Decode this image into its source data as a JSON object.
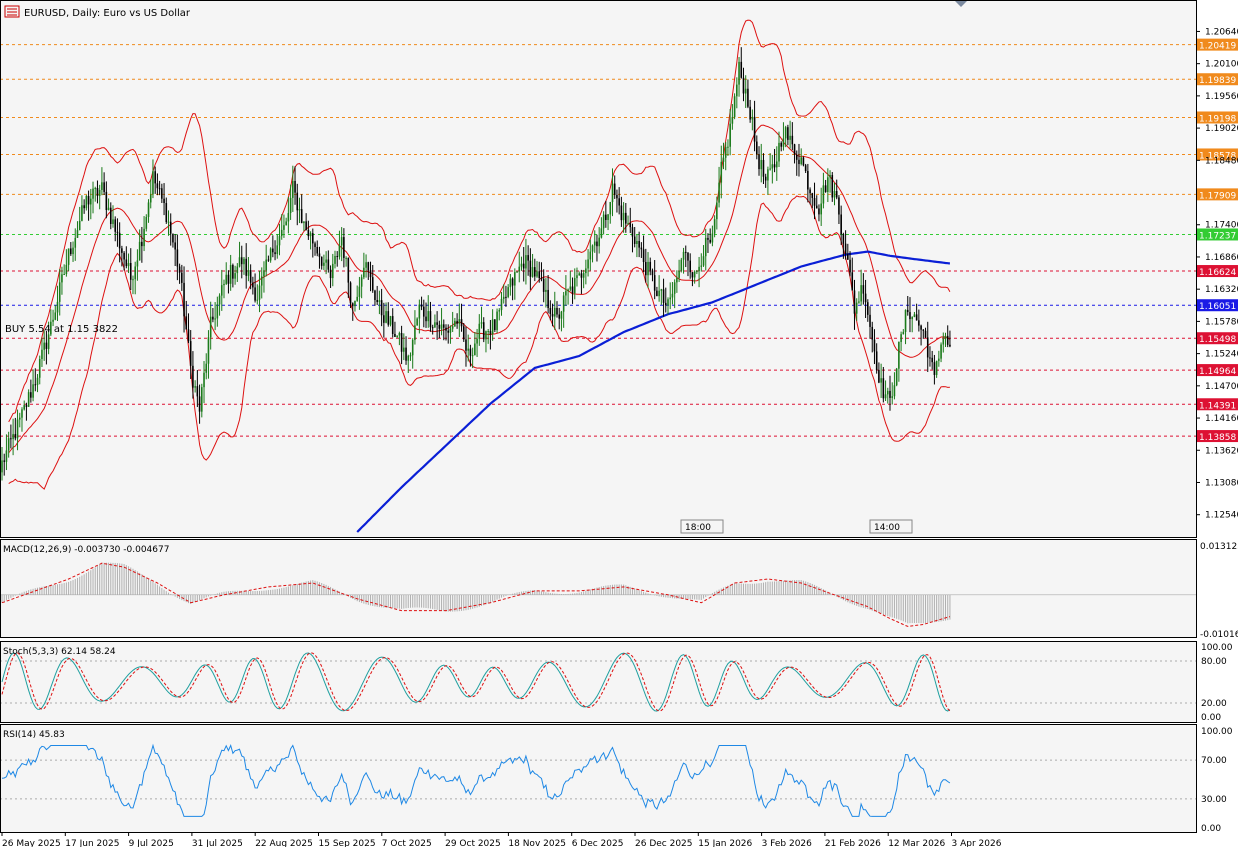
{
  "colors": {
    "background": "#f5f5f5",
    "frame": "#000000",
    "candle_up": "#1a7a1a",
    "candle_down": "#000000",
    "bollinger": "#dd1111",
    "ma": "#0a1fd6",
    "level_orange": "#f08a1c",
    "level_green": "#33cc33",
    "level_red": "#dd1133",
    "level_blue": "#1a1ae6",
    "macd_hist": "#b0b0b0",
    "macd_signal": "#dd1111",
    "stoch_main": "#20a0a0",
    "stoch_signal": "#dd1111",
    "rsi": "#1e88e5"
  },
  "chart_data": [
    {
      "type": "candlestick",
      "title": "EURUSD, Daily:  Euro vs US Dollar",
      "position_label": "BUY 5.54 at 1.15 3822",
      "ylim": [
        1.1225,
        1.211
      ],
      "y_ticks": [
        "1.20640",
        "1.20100",
        "1.19560",
        "1.19020",
        "1.18480",
        "1.17400",
        "1.16860",
        "1.16320",
        "1.15780",
        "1.15240",
        "1.14700",
        "1.14160",
        "1.13620",
        "1.13080",
        "1.12540"
      ],
      "x_labels": [
        "26 May 2025",
        "17 Jun 2025",
        "9 Jul 2025",
        "31 Jul 2025",
        "22 Aug 2025",
        "15 Sep 2025",
        "7 Oct 2025",
        "29 Oct 2025",
        "18 Nov 2025",
        "6 Dec 2025",
        "26 Dec 2025",
        "15 Jan 2026",
        "3 Feb 2026",
        "21 Feb 2026",
        "12 Mar 2026",
        "3 Apr 2026"
      ],
      "session_markers": [
        "18:00",
        "14:00"
      ],
      "levels": [
        {
          "value": 1.20419,
          "label": "1.20419",
          "style": "orange"
        },
        {
          "value": 1.19839,
          "label": "1.19839",
          "style": "orange"
        },
        {
          "value": 1.19198,
          "label": "1.19198",
          "style": "orange"
        },
        {
          "value": 1.18578,
          "label": "1.18578",
          "style": "orange"
        },
        {
          "value": 1.17909,
          "label": "1.17909",
          "style": "orange"
        },
        {
          "value": 1.17237,
          "label": "1.17237",
          "style": "green"
        },
        {
          "value": 1.16624,
          "label": "1.16624",
          "style": "red"
        },
        {
          "value": 1.16051,
          "label": "1.16051",
          "style": "blue"
        },
        {
          "value": 1.15498,
          "label": "1.15498",
          "style": "red"
        },
        {
          "value": 1.14964,
          "label": "1.14964",
          "style": "red"
        },
        {
          "value": 1.14391,
          "label": "1.14391",
          "style": "red"
        },
        {
          "value": 1.13858,
          "label": "1.13858",
          "style": "red"
        }
      ],
      "price_path": [
        [
          0,
          1.134
        ],
        [
          8,
          1.141
        ],
        [
          15,
          1.148
        ],
        [
          22,
          1.157
        ],
        [
          30,
          1.169
        ],
        [
          38,
          1.178
        ],
        [
          45,
          1.18
        ],
        [
          52,
          1.172
        ],
        [
          58,
          1.165
        ],
        [
          63,
          1.172
        ],
        [
          68,
          1.182
        ],
        [
          74,
          1.176
        ],
        [
          80,
          1.166
        ],
        [
          85,
          1.15
        ],
        [
          89,
          1.143
        ],
        [
          94,
          1.157
        ],
        [
          101,
          1.165
        ],
        [
          108,
          1.168
        ],
        [
          115,
          1.162
        ],
        [
          122,
          1.17
        ],
        [
          128,
          1.174
        ],
        [
          131,
          1.18
        ],
        [
          136,
          1.174
        ],
        [
          142,
          1.17
        ],
        [
          148,
          1.165
        ],
        [
          153,
          1.172
        ],
        [
          158,
          1.16
        ],
        [
          163,
          1.168
        ],
        [
          170,
          1.16
        ],
        [
          177,
          1.156
        ],
        [
          183,
          1.151
        ],
        [
          188,
          1.16
        ],
        [
          194,
          1.158
        ],
        [
          200,
          1.156
        ],
        [
          205,
          1.158
        ],
        [
          210,
          1.152
        ],
        [
          215,
          1.156
        ],
        [
          222,
          1.157
        ],
        [
          228,
          1.163
        ],
        [
          235,
          1.168
        ],
        [
          240,
          1.166
        ],
        [
          246,
          1.161
        ],
        [
          250,
          1.158
        ],
        [
          254,
          1.162
        ],
        [
          260,
          1.165
        ],
        [
          265,
          1.17
        ],
        [
          270,
          1.173
        ],
        [
          275,
          1.18
        ],
        [
          280,
          1.175
        ],
        [
          285,
          1.172
        ],
        [
          290,
          1.167
        ],
        [
          295,
          1.163
        ],
        [
          300,
          1.16
        ],
        [
          304,
          1.165
        ],
        [
          308,
          1.17
        ],
        [
          312,
          1.165
        ],
        [
          316,
          1.17
        ],
        [
          320,
          1.171
        ],
        [
          324,
          1.183
        ],
        [
          328,
          1.19
        ],
        [
          332,
          1.2
        ],
        [
          336,
          1.195
        ],
        [
          340,
          1.186
        ],
        [
          344,
          1.181
        ],
        [
          348,
          1.184
        ],
        [
          352,
          1.19
        ],
        [
          356,
          1.187
        ],
        [
          360,
          1.185
        ],
        [
          364,
          1.18
        ],
        [
          368,
          1.177
        ],
        [
          372,
          1.182
        ],
        [
          376,
          1.178
        ],
        [
          380,
          1.17
        ],
        [
          384,
          1.16
        ],
        [
          388,
          1.164
        ],
        [
          392,
          1.155
        ],
        [
          396,
          1.147
        ],
        [
          400,
          1.144
        ],
        [
          404,
          1.153
        ],
        [
          408,
          1.16
        ],
        [
          412,
          1.158
        ],
        [
          416,
          1.155
        ],
        [
          420,
          1.148
        ],
        [
          424,
          1.156
        ],
        [
          427,
          1.1537
        ]
      ],
      "ma_path": [
        [
          160,
          1.1225
        ],
        [
          180,
          1.13
        ],
        [
          200,
          1.137
        ],
        [
          220,
          1.144
        ],
        [
          240,
          1.15
        ],
        [
          260,
          1.152
        ],
        [
          280,
          1.156
        ],
        [
          300,
          1.159
        ],
        [
          320,
          1.161
        ],
        [
          340,
          1.164
        ],
        [
          360,
          1.167
        ],
        [
          380,
          1.169
        ],
        [
          390,
          1.1695
        ],
        [
          400,
          1.1688
        ],
        [
          412,
          1.1682
        ],
        [
          427,
          1.1675
        ]
      ]
    },
    {
      "type": "histogram",
      "title": "MACD(12,26,9) -0.003730 -0.004677",
      "y_max_label": "0.013123",
      "y_min_label": "-0.010165",
      "ylim": [
        -0.010165,
        0.013123
      ],
      "signal_path": [
        [
          0,
          -0.002
        ],
        [
          30,
          0.004
        ],
        [
          45,
          0.008
        ],
        [
          55,
          0.007
        ],
        [
          70,
          0.003
        ],
        [
          85,
          -0.002
        ],
        [
          100,
          0.0
        ],
        [
          120,
          0.002
        ],
        [
          140,
          0.003
        ],
        [
          160,
          -0.001
        ],
        [
          180,
          -0.004
        ],
        [
          200,
          -0.004
        ],
        [
          220,
          -0.002
        ],
        [
          240,
          0.001
        ],
        [
          260,
          0.001
        ],
        [
          280,
          0.002
        ],
        [
          300,
          0.0
        ],
        [
          315,
          -0.002
        ],
        [
          330,
          0.003
        ],
        [
          345,
          0.004
        ],
        [
          360,
          0.003
        ],
        [
          375,
          0.0
        ],
        [
          390,
          -0.003
        ],
        [
          400,
          -0.006
        ],
        [
          408,
          -0.008
        ],
        [
          415,
          -0.0075
        ],
        [
          427,
          -0.0055
        ]
      ]
    },
    {
      "type": "line",
      "title": "Stoch(5,3,3) 62.14 58.24",
      "y_ticks": [
        "100.00",
        "80.00",
        "20.00",
        "0.00"
      ],
      "ylim": [
        0,
        100
      ],
      "levels": [
        80,
        20
      ]
    },
    {
      "type": "line",
      "title": "RSI(14) 45.83",
      "y_ticks": [
        "100.00",
        "70.00",
        "30.00",
        "0.00"
      ],
      "ylim": [
        0,
        100
      ],
      "levels": [
        70,
        30
      ]
    }
  ]
}
